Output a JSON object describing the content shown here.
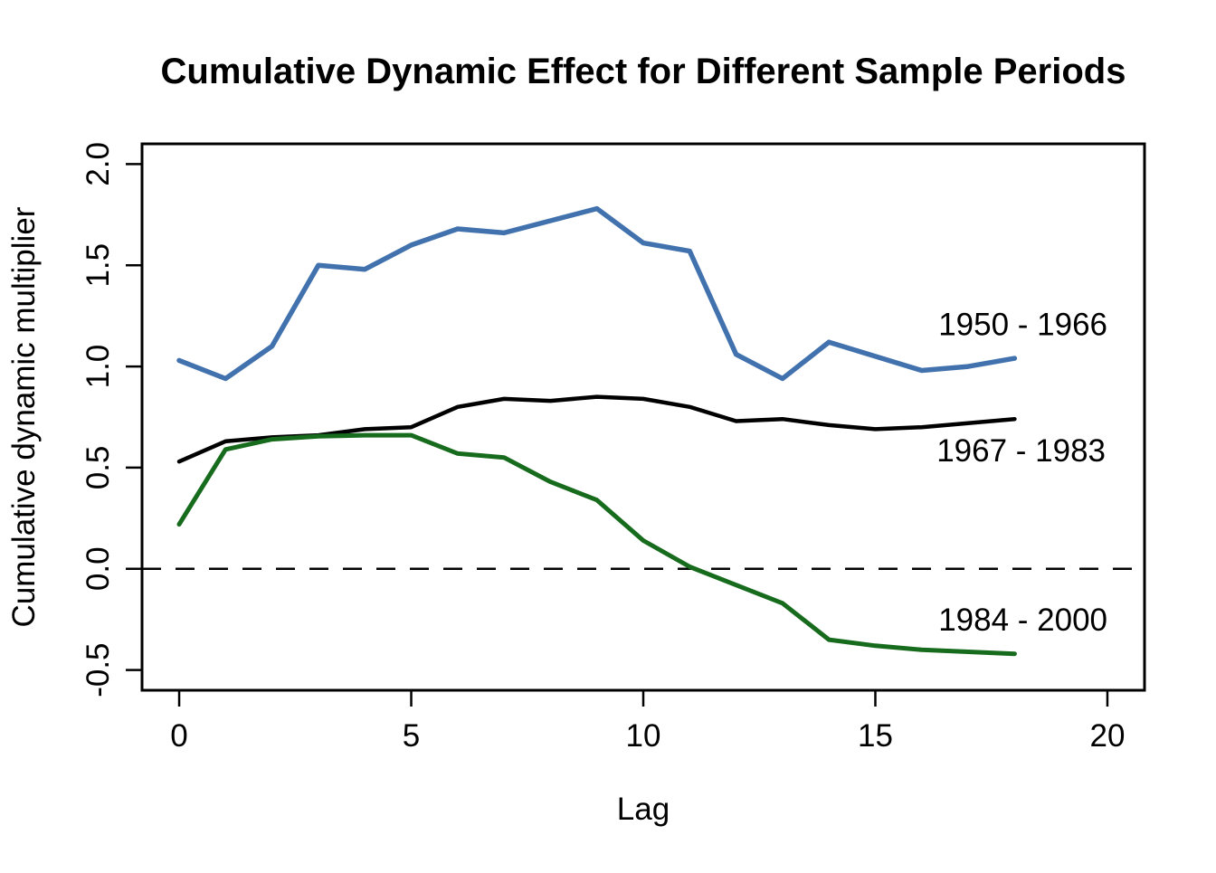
{
  "chart_data": {
    "type": "line",
    "title": "Cumulative Dynamic Effect for Different Sample Periods",
    "xlabel": "Lag",
    "ylabel": "Cumulative dynamic multiplier",
    "x": [
      0,
      1,
      2,
      3,
      4,
      5,
      6,
      7,
      8,
      9,
      10,
      11,
      12,
      13,
      14,
      15,
      16,
      17,
      18
    ],
    "series": [
      {
        "name": "1950 - 1966",
        "color": "#4272AE",
        "line_width": 5.5,
        "values": [
          1.03,
          0.94,
          1.1,
          1.5,
          1.48,
          1.6,
          1.68,
          1.66,
          1.72,
          1.78,
          1.61,
          1.57,
          1.06,
          0.94,
          1.12,
          1.05,
          0.98,
          1.0,
          1.04
        ],
        "label_at": {
          "x": 16.36,
          "y": 1.21
        }
      },
      {
        "name": "1967 - 1983",
        "color": "#000000",
        "line_width": 4.5,
        "values": [
          0.53,
          0.63,
          0.65,
          0.66,
          0.69,
          0.7,
          0.8,
          0.84,
          0.83,
          0.85,
          0.84,
          0.8,
          0.73,
          0.74,
          0.71,
          0.69,
          0.7,
          0.72,
          0.74
        ],
        "label_at": {
          "x": 16.32,
          "y": 0.585
        }
      },
      {
        "name": "1984 - 2000",
        "color": "#176B1D",
        "line_width": 5,
        "values": [
          0.22,
          0.59,
          0.64,
          0.655,
          0.66,
          0.66,
          0.57,
          0.55,
          0.43,
          0.34,
          0.14,
          0.01,
          -0.08,
          -0.17,
          -0.35,
          -0.38,
          -0.4,
          -0.41,
          -0.42
        ],
        "label_at": {
          "x": 16.36,
          "y": -0.25
        }
      }
    ],
    "xticks": {
      "values": [
        0,
        5,
        10,
        15,
        20
      ],
      "labels": [
        "0",
        "5",
        "10",
        "15",
        "20"
      ]
    },
    "yticks": {
      "values": [
        2.0,
        1.5,
        1.0,
        0.5,
        0.0,
        -0.5
      ],
      "labels": [
        "2.0",
        "1.5",
        "1.0",
        "0.5",
        "0.0",
        "-0.5"
      ]
    },
    "xlim": [
      -0.8,
      20.8
    ],
    "ylim": [
      -0.6,
      2.1
    ],
    "zero_line": {
      "y": 0.0,
      "style": "dashed",
      "color": "#000000"
    },
    "grid": false,
    "legend_position": "inline-right-annotations",
    "axis_color": "#000000"
  }
}
